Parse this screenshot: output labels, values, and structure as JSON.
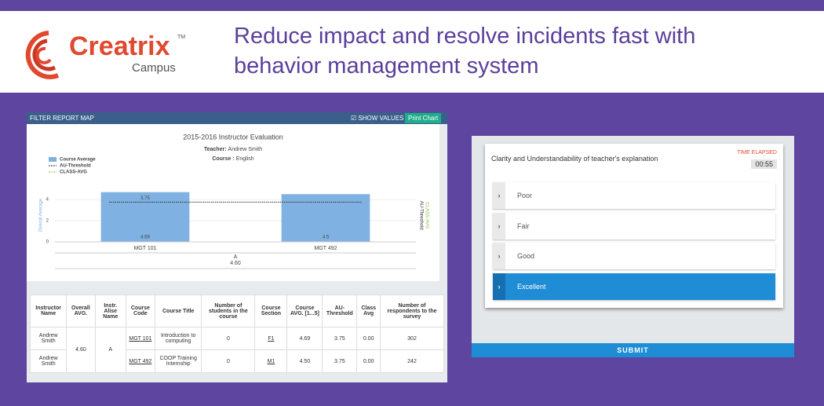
{
  "logo": {
    "name": "Creatrix",
    "sub": "Campus",
    "tm": "TM"
  },
  "headline": {
    "line1": "Reduce impact and resolve incidents fast with",
    "line2": "behavior management system"
  },
  "report": {
    "toolbar": {
      "title": "FILTER REPORT MAP",
      "show_values": "SHOW VALUES",
      "print": "Print Chart"
    },
    "chart": {
      "type": "bar",
      "title": "2015-2016 Instructor Evaluation",
      "teacher_label": "Teacher:",
      "teacher": "Andrew Smith",
      "course_label": "Course :",
      "course": "English",
      "legend": [
        "Course Average",
        "AU-Threshold",
        "CLASS-AVG"
      ],
      "y_label": "Overall Average",
      "y2_labels": [
        "AU-Threshold",
        "CLASS-AVG"
      ],
      "categories": [
        "MGT 101",
        "MGT 492"
      ],
      "values": [
        4.69,
        4.5
      ],
      "color": "#7fb2e2",
      "threshold": 3.75,
      "group": {
        "label": "A",
        "value": "4.60"
      },
      "ylim": [
        0,
        5
      ],
      "yticks": [
        0,
        2,
        4
      ]
    },
    "table": {
      "headers": [
        "Instructor Name",
        "Overall AVG.",
        "Instr. Alise Name",
        "Course Code",
        "Course Title",
        "Number of students in the course",
        "Course Section",
        "Course AVG. [1...5]",
        "AU-Threshold",
        "Class Avg",
        "Number of respondents to the survey"
      ],
      "overall_avg": "4.60",
      "alias": "A",
      "rows": [
        [
          "Andrew Smith",
          "MGT 101",
          "Introduction to computing",
          "0",
          "F1",
          "4.69",
          "3.75",
          "0.00",
          "302"
        ],
        [
          "Andrew Smith",
          "MGT 492",
          "COOP Training Internship",
          "0",
          "M1",
          "4.50",
          "3.75",
          "0.00",
          "242"
        ]
      ]
    }
  },
  "quiz": {
    "question": "Clarity and Understandability of teacher's  explanation",
    "timer_label": "TIME ELAPSED",
    "timer": "00:55",
    "options": [
      "Poor",
      "Fair",
      "Good",
      "Excellent"
    ],
    "selected": 3,
    "submit": "SUBMIT"
  }
}
